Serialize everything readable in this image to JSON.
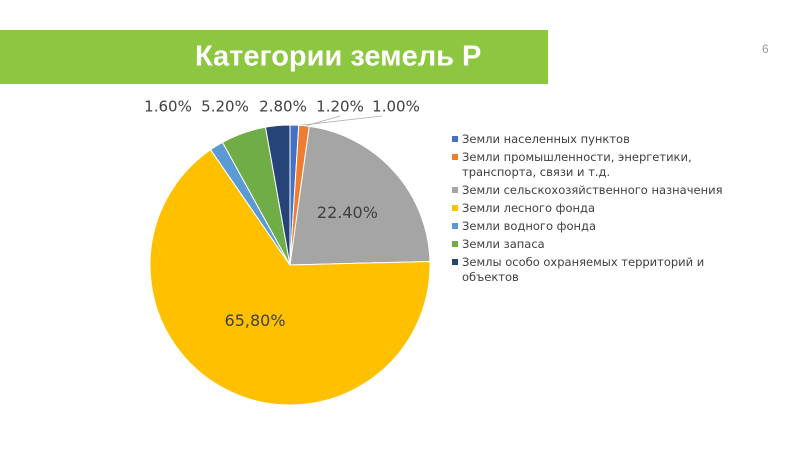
{
  "header": {
    "title": "Категории земель Р",
    "page": "6"
  },
  "chart_data": {
    "type": "pie",
    "categories": [
      "Земли населенных пунктов",
      "Земли промышленности, энергетики, транспорта, связи и т.д.",
      "Земли сельскохозяйственного назначения",
      "Земли лесного фонда",
      "Земли водного фонда",
      "Земли запаса",
      "Землы особо охраняемых территорий и объектов"
    ],
    "values": [
      1.0,
      1.2,
      22.4,
      65.8,
      1.6,
      5.2,
      2.8
    ],
    "value_labels": [
      "1.00%",
      "1.20%",
      "22.40%",
      "65,80%",
      "1.60%",
      "5.20%",
      "2.80%"
    ],
    "colors": [
      "#4472c4",
      "#ed7d31",
      "#a5a5a5",
      "#ffc000",
      "#5b9bd5",
      "#70ad47",
      "#264478"
    ]
  }
}
